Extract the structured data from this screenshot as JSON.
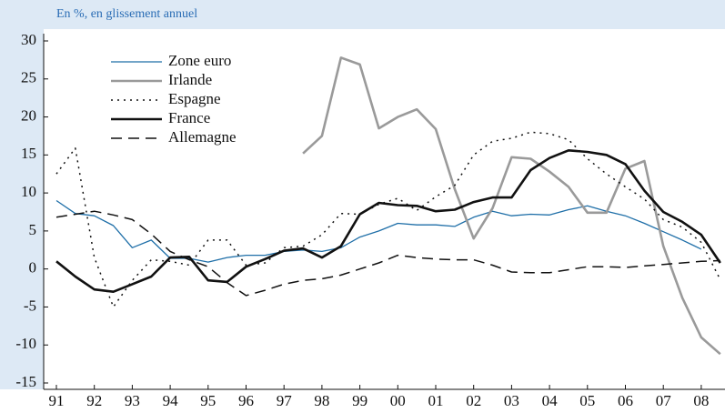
{
  "chart_data": {
    "type": "line",
    "subtitle": "En %, en glissement annuel",
    "categories": [
      "91",
      null,
      "92",
      null,
      "93",
      null,
      "94",
      null,
      "95",
      null,
      "96",
      null,
      "97",
      null,
      "98",
      null,
      "99",
      null,
      "00",
      null,
      "01",
      null,
      "02",
      null,
      "03",
      null,
      "04",
      null,
      "05",
      null,
      "06",
      null,
      "07",
      null,
      "08",
      null
    ],
    "ylim": [
      -15,
      30
    ],
    "yticks": [
      -15,
      -10,
      -5,
      0,
      5,
      10,
      15,
      20,
      25,
      30
    ],
    "grid": false,
    "legend": "top-left",
    "series": [
      {
        "name": "Zone euro",
        "color": "#1f6fa8",
        "line_style": "solid",
        "line_width": 1.3,
        "values": [
          9,
          7.3,
          7,
          5.7,
          2.8,
          3.8,
          1.4,
          1.4,
          0.9,
          1.5,
          1.8,
          1.8,
          2.3,
          2.5,
          2.3,
          2.8,
          4.2,
          5,
          6,
          5.8,
          5.8,
          5.6,
          6.8,
          7.6,
          7,
          7.2,
          7.1,
          7.8,
          8.3,
          7.6,
          7,
          6,
          4.9,
          3.8,
          2.6,
          null
        ]
      },
      {
        "name": "Irlande",
        "color": "#9a9a9a",
        "line_style": "solid",
        "line_width": 2.6,
        "values": [
          null,
          null,
          null,
          null,
          null,
          null,
          null,
          null,
          null,
          null,
          null,
          null,
          null,
          15.2,
          17.5,
          27.8,
          26.9,
          18.5,
          20,
          21,
          18.4,
          10.5,
          4,
          8,
          14.7,
          14.5,
          12.8,
          10.8,
          7.4,
          7.4,
          13.2,
          14.2,
          3,
          -3.8,
          -9,
          -11.2
        ]
      },
      {
        "name": "Espagne",
        "color": "#111111",
        "line_style": "dotted",
        "line_width": 1.5,
        "values": [
          12.5,
          15.9,
          1.5,
          -5,
          -1.5,
          1.2,
          1,
          0.5,
          3.8,
          3.8,
          0.5,
          0.8,
          2.8,
          3,
          4.5,
          7.3,
          7.2,
          8.5,
          9.3,
          7.7,
          9.5,
          11,
          15,
          16.8,
          17.2,
          18,
          17.8,
          17,
          14.5,
          12.5,
          10.8,
          9.2,
          6.5,
          5.5,
          3.5,
          -1.4
        ]
      },
      {
        "name": "France",
        "color": "#111111",
        "line_style": "solid",
        "line_width": 2.6,
        "values": [
          1,
          -1,
          -2.7,
          -3,
          -2,
          -1,
          1.5,
          1.6,
          -1.5,
          -1.7,
          0.3,
          1.3,
          2.4,
          2.7,
          1.5,
          3,
          7.2,
          8.7,
          8.4,
          8.3,
          7.6,
          7.8,
          8.8,
          9.4,
          9.4,
          13,
          14.6,
          15.6,
          15.4,
          15,
          13.8,
          10.3,
          7.5,
          6.2,
          4.5,
          0.8
        ]
      },
      {
        "name": "Allemagne",
        "color": "#111111",
        "line_style": "dashed",
        "line_width": 1.5,
        "values": [
          6.8,
          7.2,
          7.6,
          7.1,
          6.5,
          4.6,
          2.3,
          1.2,
          0.3,
          -1.8,
          -3.5,
          -2.8,
          -2,
          -1.5,
          -1.3,
          -0.8,
          0,
          0.8,
          1.8,
          1.5,
          1.3,
          1.2,
          1.2,
          0.5,
          -0.4,
          -0.5,
          -0.5,
          -0.1,
          0.3,
          0.3,
          0.2,
          0.4,
          0.6,
          0.8,
          1,
          1.1
        ]
      }
    ]
  }
}
